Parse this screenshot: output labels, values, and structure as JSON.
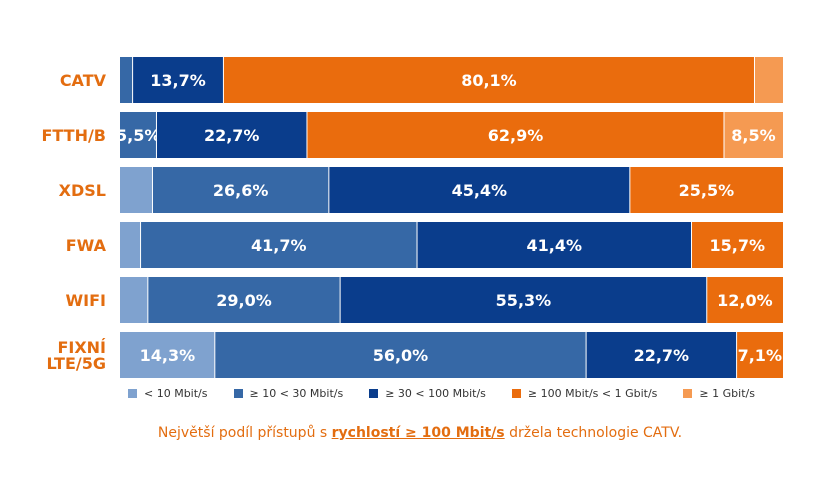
{
  "chart_data": {
    "type": "bar",
    "orientation": "horizontal",
    "stacked": true,
    "normalized": true,
    "value_unit": "%",
    "categories": [
      {
        "label": [
          "CATV"
        ],
        "segments": [
          1.9,
          13.7,
          80.1,
          4.3
        ],
        "start_class": 1
      },
      {
        "label": [
          "FTTH/B"
        ],
        "segments": [
          5.5,
          22.7,
          62.9,
          8.5
        ],
        "start_class": 1
      },
      {
        "label": [
          "XDSL"
        ],
        "segments": [
          4.9,
          26.6,
          45.4,
          25.5
        ],
        "start_class": 0
      },
      {
        "label": [
          "FWA"
        ],
        "segments": [
          3.1,
          41.7,
          41.4,
          15.7
        ],
        "start_class": 0
      },
      {
        "label": [
          "WIFI"
        ],
        "segments": [
          4.2,
          29.0,
          55.3,
          12.0
        ],
        "start_class": 0
      },
      {
        "label": [
          "FIXNÍ",
          "LTE/5G"
        ],
        "segments": [
          14.3,
          56.0,
          22.7,
          7.1
        ],
        "start_class": 0
      }
    ],
    "series": [
      {
        "name": "< 10 Mbit/s",
        "color": "#7fa2cf"
      },
      {
        "name": "≥ 10 < 30 Mbit/s",
        "color": "#3668a6"
      },
      {
        "name": "≥ 30 < 100 Mbit/s",
        "color": "#0a3d8c"
      },
      {
        "name": "≥ 100 Mbit/s < 1 Gbit/s",
        "color": "#ea6c0d"
      },
      {
        "name": "≥ 1 Gbit/s",
        "color": "#f59a52"
      }
    ],
    "label_color": "#e36d10",
    "xlim": [
      0,
      100
    ],
    "grid": false,
    "legend_position": "bottom"
  },
  "footnote": {
    "prefix": "Největší podíl přístupů s ",
    "highlight": "rychlostí ≥ 100 Mbit/s",
    "suffix": " držela technologie CATV."
  }
}
